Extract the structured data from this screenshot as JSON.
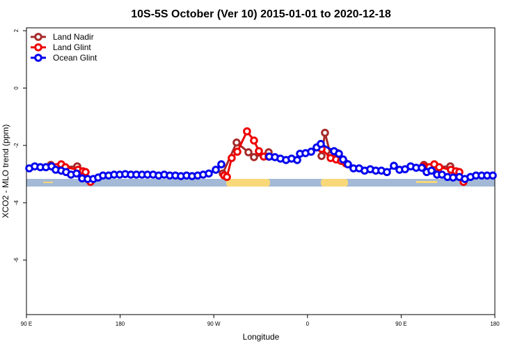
{
  "chart_data": {
    "type": "line",
    "title": "10S-5S October (Ver 10)   2015-01-01 to 2020-12-18",
    "x_label": "Longitude",
    "y_label": "XCO2 - MLO trend (ppm)",
    "xlim": [
      90,
      540
    ],
    "ylim": [
      -7.9,
      2.1
    ],
    "xticks": [
      {
        "value": 90,
        "label": "90 E"
      },
      180,
      {
        "value": 270,
        "label": "90 W"
      },
      {
        "value": 360,
        "label": "0"
      },
      {
        "value": 450,
        "label": "90 E"
      },
      {
        "value": 540,
        "label": "180"
      }
    ],
    "yticks": [
      2,
      0,
      -2,
      -4,
      -6
    ],
    "legend_position": "top-left",
    "series": [
      {
        "name": "Land Nadir",
        "color": "#a52a2a",
        "x": [
          113.4,
          123.4,
          138.8,
          146.8,
          200,
          278.6,
          291.9,
          303.3,
          308.6,
          322.7,
          350,
          373.5,
          376.8,
          382.2,
          388.9,
          430,
          471.8,
          481.8,
          497.2,
          505.2
        ],
        "values": [
          -2.68,
          -2.76,
          -2.73,
          -2.93,
          null,
          -2.98,
          -1.9,
          -2.24,
          -2.41,
          -2.24,
          null,
          -2.37,
          -1.56,
          -2.34,
          -2.27,
          null,
          -2.68,
          -2.76,
          -2.73,
          -2.93
        ]
      },
      {
        "name": "Land Glint",
        "color": "#ee0000",
        "x": [
          114.1,
          118.7,
          123.4,
          127.4,
          139.5,
          144.2,
          146.8,
          151.5,
          200,
          279.9,
          282.6,
          287.2,
          292.6,
          301.9,
          308.6,
          313.3,
          318.0,
          322.7,
          350,
          373.5,
          382.2,
          387.5,
          392.2,
          396.9,
          430,
          471.1,
          477.1,
          481.8,
          486.5,
          497.8,
          502.5,
          505.9,
          509.9
        ],
        "values": [
          -2.73,
          -2.76,
          -2.66,
          -2.76,
          -2.85,
          -2.9,
          -2.93,
          -3.27,
          null,
          -3.05,
          -3.1,
          -2.44,
          -2.22,
          -1.51,
          -1.83,
          -2.2,
          -2.39,
          -2.39,
          null,
          -2.12,
          -2.44,
          -2.49,
          -2.54,
          -2.63,
          null,
          -2.73,
          -2.76,
          -2.66,
          -2.76,
          -2.85,
          -2.9,
          -2.93,
          -3.27
        ]
      },
      {
        "name": "Ocean Glint",
        "color": "#0000ee",
        "x": [
          92.7,
          98.0,
          103.4,
          108.7,
          114.1,
          118.1,
          123.4,
          128.1,
          132.8,
          138.1,
          143.5,
          148.8,
          154.2,
          158.9,
          163.5,
          168.9,
          174.2,
          179.6,
          184.9,
          190.3,
          195.6,
          201.0,
          206.3,
          211.7,
          217.0,
          222.4,
          227.7,
          233.1,
          238.4,
          243.8,
          249.1,
          254.5,
          259.8,
          265.2,
          271.9,
          277.2,
          300,
          323.3,
          328.7,
          334.0,
          339.4,
          344.7,
          350.1,
          352.8,
          358.1,
          363.5,
          368.8,
          372.8,
          385.5,
          390.2,
          394.2,
          398.9,
          404.2,
          409.6,
          414.9,
          420.3,
          425.6,
          431.0,
          436.3,
          443.0,
          448.4,
          453.7,
          459.1,
          464.4,
          469.8,
          474.5,
          479.1,
          484.5,
          489.2,
          494.5,
          499.9,
          505.9,
          511.2,
          516.6,
          521.9,
          527.3,
          532.6,
          538.0
        ],
        "values": [
          -2.8,
          -2.73,
          -2.76,
          -2.76,
          -2.73,
          -2.85,
          -2.88,
          -2.93,
          -3.02,
          -2.98,
          -3.15,
          -3.17,
          -3.17,
          -3.12,
          -3.05,
          -3.05,
          -3.02,
          -3.02,
          -3.0,
          -3.02,
          -3.02,
          -3.02,
          -3.02,
          -3.02,
          -3.05,
          -3.02,
          -3.05,
          -3.05,
          -3.07,
          -3.05,
          -3.07,
          -3.05,
          -3.02,
          -2.98,
          -2.85,
          -2.66,
          null,
          -2.39,
          -2.41,
          -2.46,
          -2.51,
          -2.46,
          -2.51,
          -2.29,
          -2.27,
          -2.22,
          -2.07,
          -1.95,
          -2.2,
          -2.29,
          -2.49,
          -2.66,
          -2.8,
          -2.8,
          -2.88,
          -2.83,
          -2.88,
          -2.88,
          -2.93,
          -2.71,
          -2.85,
          -2.83,
          -2.73,
          -2.78,
          -2.78,
          -2.93,
          -2.88,
          -3.02,
          -3.02,
          -3.1,
          -3.12,
          -3.1,
          -3.17,
          -3.1,
          -3.05,
          -3.05,
          -3.05,
          -3.05
        ]
      }
    ]
  }
}
